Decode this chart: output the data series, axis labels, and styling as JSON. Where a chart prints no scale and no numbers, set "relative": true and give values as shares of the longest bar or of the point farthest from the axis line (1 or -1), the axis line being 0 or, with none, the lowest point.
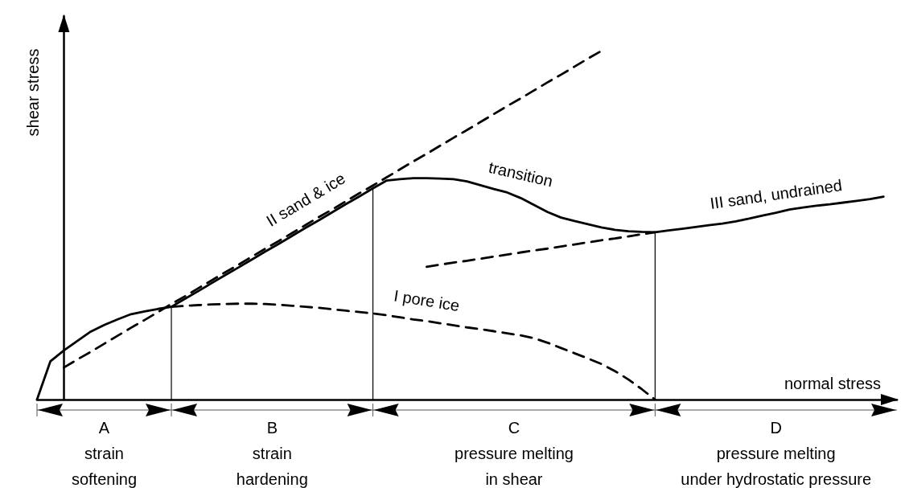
{
  "chart_data": {
    "type": "line",
    "relative": true,
    "xlabel": "normal stress",
    "ylabel": "shear stress",
    "grid": false,
    "marker": "none",
    "categories": [
      null,
      null,
      null,
      null,
      null,
      null,
      null,
      null,
      null,
      null,
      null,
      null,
      null,
      null,
      null,
      null,
      null,
      null,
      null,
      null,
      null,
      null,
      null,
      null,
      null,
      null,
      null,
      null,
      null,
      null,
      null,
      null,
      null,
      null,
      null,
      null,
      null,
      null,
      null,
      null,
      null,
      null,
      null,
      null,
      null,
      null,
      null,
      null,
      null,
      null,
      null,
      null,
      null,
      null,
      null,
      null,
      null,
      null,
      null,
      null,
      null,
      null,
      null,
      null,
      null
    ],
    "series": [
      {
        "color": "#000000",
        "line_style": "solid",
        "values": [
          0,
          0.11,
          0.141,
          0.168,
          0.195,
          0.214,
          0.23,
          0.245,
          0.253,
          0.26,
          0.266,
          0.289,
          0.311,
          0.334,
          0.357,
          0.379,
          0.402,
          0.425,
          0.447,
          0.47,
          0.493,
          0.515,
          0.538,
          0.561,
          0.583,
          0.606,
          0.628,
          0.632,
          0.635,
          0.635,
          0.634,
          0.632,
          0.626,
          0.615,
          0.604,
          0.594,
          0.578,
          0.558,
          0.538,
          0.522,
          0.512,
          0.503,
          0.494,
          0.487,
          0.483,
          0.481,
          0.48,
          0.485,
          0.49,
          0.495,
          0.5,
          0.505,
          0.511,
          0.519,
          0.528,
          0.536,
          0.545,
          0.551,
          0.556,
          0.56,
          0.565,
          0.57,
          0.575,
          0.582,
          null
        ]
      },
      {
        "color": "#000000",
        "line_style": "dashed",
        "values": [
          null,
          null,
          0.092,
          0.115,
          0.137,
          0.16,
          0.183,
          0.206,
          0.228,
          0.251,
          0.274,
          0.296,
          0.319,
          0.342,
          0.365,
          0.387,
          0.41,
          0.433,
          0.455,
          0.478,
          0.501,
          0.524,
          0.546,
          0.569,
          0.592,
          0.614,
          0.637,
          0.66,
          0.683,
          0.705,
          0.728,
          0.751,
          0.773,
          0.796,
          0.819,
          0.842,
          0.864,
          0.887,
          0.91,
          0.932,
          0.955,
          0.978,
          1,
          null,
          null,
          null,
          null,
          null,
          null,
          null,
          null,
          null,
          null,
          null,
          null,
          null,
          null,
          null,
          null,
          null,
          null,
          null,
          null,
          null,
          null
        ]
      },
      {
        "color": "#000000",
        "line_style": "dashed",
        "values": [
          null,
          null,
          null,
          null,
          null,
          null,
          null,
          null,
          null,
          null,
          0.266,
          0.269,
          0.271,
          0.273,
          0.274,
          0.275,
          0.275,
          0.274,
          0.272,
          0.269,
          0.266,
          0.263,
          0.259,
          0.255,
          0.251,
          0.247,
          0.242,
          0.236,
          0.23,
          0.225,
          0.219,
          0.213,
          0.207,
          0.202,
          0.196,
          0.19,
          0.184,
          0.176,
          0.163,
          0.148,
          0.133,
          0.118,
          0.102,
          0.082,
          0.058,
          0.03,
          0,
          null,
          null,
          null,
          null,
          null,
          null,
          null,
          null,
          null,
          null,
          null,
          null,
          null,
          null,
          null,
          null,
          null,
          null
        ]
      },
      {
        "color": "#000000",
        "line_style": "dashed",
        "values": [
          null,
          null,
          null,
          null,
          null,
          null,
          null,
          null,
          null,
          null,
          null,
          null,
          null,
          null,
          null,
          null,
          null,
          null,
          null,
          null,
          null,
          null,
          null,
          null,
          null,
          null,
          null,
          null,
          null,
          0.381,
          0.387,
          0.393,
          0.398,
          0.404,
          0.41,
          0.416,
          0.422,
          0.428,
          0.433,
          0.439,
          0.445,
          0.451,
          0.457,
          0.462,
          0.468,
          0.474,
          0.48,
          null,
          null,
          null,
          null,
          null,
          null,
          null,
          null,
          null,
          null,
          null,
          null,
          null,
          null,
          null,
          null,
          null,
          null
        ]
      }
    ],
    "annotations": [
      "II sand & ice",
      "transition",
      "I pore ice",
      "III sand, undrained",
      "A\nstrain\nsoftening",
      "B\nstrain\nhardening",
      "C\npressure melting\nin shear",
      "D\npressure melting\nunder hydrostatic pressure"
    ]
  }
}
